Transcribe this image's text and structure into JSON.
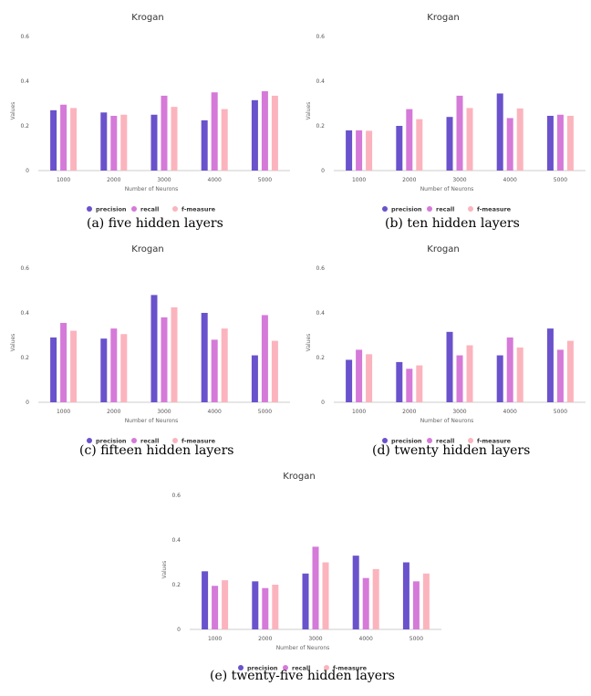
{
  "colors": {
    "precision": "#6a52cc",
    "recall": "#d57ad9",
    "f-measure": "#fbb4bd",
    "axis": "#cccccc"
  },
  "chart_data": [
    {
      "type": "bar",
      "title": "Krogan",
      "xlabel": "Number of Neurons",
      "ylabel": "Values",
      "categories": [
        "1000",
        "2000",
        "3000",
        "4000",
        "5000"
      ],
      "ylim": [
        0,
        0.6
      ],
      "yticks": [
        "0",
        "0.2",
        "0.4",
        "0.6"
      ],
      "series": [
        {
          "name": "precision",
          "values": [
            0.27,
            0.26,
            0.25,
            0.225,
            0.315
          ]
        },
        {
          "name": "recall",
          "values": [
            0.295,
            0.245,
            0.335,
            0.35,
            0.355
          ]
        },
        {
          "name": "f-measure",
          "values": [
            0.28,
            0.25,
            0.285,
            0.275,
            0.335
          ]
        }
      ],
      "caption": "(a) five hidden layers"
    },
    {
      "type": "bar",
      "title": "Krogan",
      "xlabel": "Number of Neurons",
      "ylabel": "Values",
      "categories": [
        "1000",
        "2000",
        "3000",
        "4000",
        "5000"
      ],
      "ylim": [
        0,
        0.6
      ],
      "yticks": [
        "0",
        "0.2",
        "0.4",
        "0.6"
      ],
      "series": [
        {
          "name": "precision",
          "values": [
            0.18,
            0.2,
            0.24,
            0.345,
            0.245
          ]
        },
        {
          "name": "recall",
          "values": [
            0.18,
            0.275,
            0.335,
            0.235,
            0.25
          ]
        },
        {
          "name": "f-measure",
          "values": [
            0.178,
            0.23,
            0.28,
            0.278,
            0.245
          ]
        }
      ],
      "caption": "(b) ten hidden layers"
    },
    {
      "type": "bar",
      "title": "Krogan",
      "xlabel": "Number of Neurons",
      "ylabel": "Values",
      "categories": [
        "1000",
        "2000",
        "3000",
        "4000",
        "5000"
      ],
      "ylim": [
        0,
        0.6
      ],
      "yticks": [
        "0",
        "0.2",
        "0.4",
        "0.6"
      ],
      "series": [
        {
          "name": "precision",
          "values": [
            0.29,
            0.285,
            0.48,
            0.4,
            0.21
          ]
        },
        {
          "name": "recall",
          "values": [
            0.355,
            0.33,
            0.38,
            0.28,
            0.39
          ]
        },
        {
          "name": "f-measure",
          "values": [
            0.32,
            0.305,
            0.425,
            0.33,
            0.275
          ]
        }
      ],
      "caption": "(c) fifteen hidden layers"
    },
    {
      "type": "bar",
      "title": "Krogan",
      "xlabel": "Number of Neurons",
      "ylabel": "Values",
      "categories": [
        "1000",
        "2000",
        "3000",
        "4000",
        "5000"
      ],
      "ylim": [
        0,
        0.6
      ],
      "yticks": [
        "0",
        "0.2",
        "0.4",
        "0.6"
      ],
      "series": [
        {
          "name": "precision",
          "values": [
            0.19,
            0.18,
            0.315,
            0.21,
            0.33
          ]
        },
        {
          "name": "recall",
          "values": [
            0.235,
            0.15,
            0.21,
            0.29,
            0.235
          ]
        },
        {
          "name": "f-measure",
          "values": [
            0.215,
            0.165,
            0.255,
            0.245,
            0.275
          ]
        }
      ],
      "caption": "(d) twenty hidden layers"
    },
    {
      "type": "bar",
      "title": "Krogan",
      "xlabel": "Number of Neurons",
      "ylabel": "Values",
      "categories": [
        "1000",
        "2000",
        "3000",
        "4000",
        "5000"
      ],
      "ylim": [
        0,
        0.6
      ],
      "yticks": [
        "0",
        "0.2",
        "0.4",
        "0.6"
      ],
      "series": [
        {
          "name": "precision",
          "values": [
            0.26,
            0.215,
            0.25,
            0.33,
            0.3
          ]
        },
        {
          "name": "recall",
          "values": [
            0.195,
            0.185,
            0.37,
            0.23,
            0.215
          ]
        },
        {
          "name": "f-measure",
          "values": [
            0.22,
            0.2,
            0.3,
            0.27,
            0.25
          ]
        }
      ],
      "caption": "(e) twenty-five hidden layers"
    }
  ]
}
